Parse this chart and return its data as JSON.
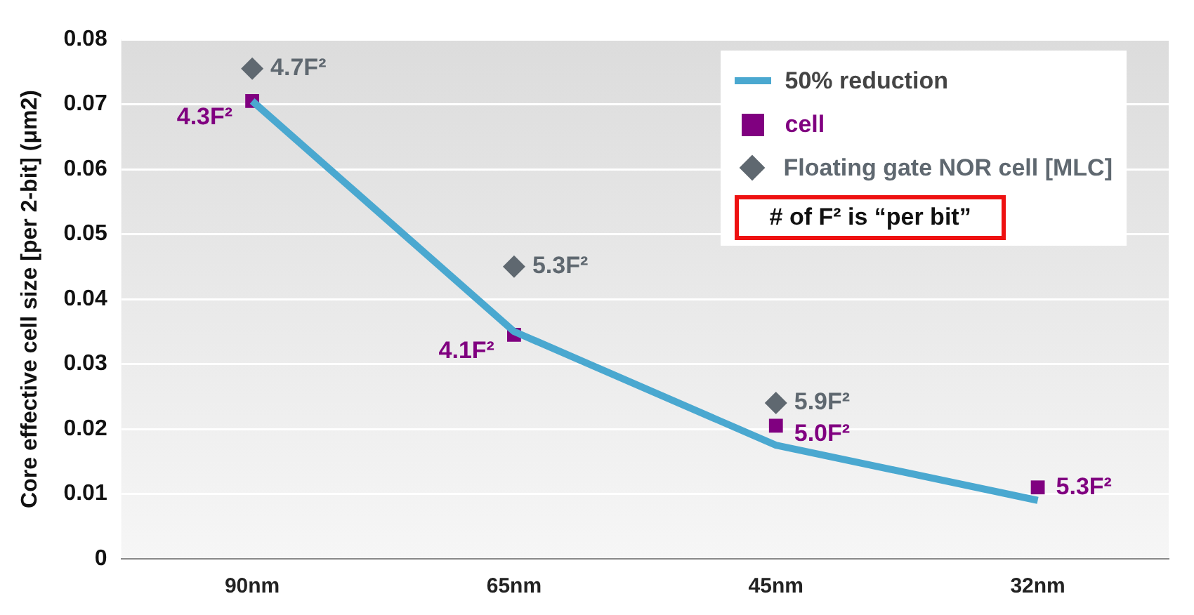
{
  "chart_data": {
    "type": "line",
    "ylabel": "Core effective cell size [per 2-bit] (μm2)",
    "categories": [
      "90nm",
      "65nm",
      "45nm",
      "32nm"
    ],
    "series": [
      {
        "name": "50% reduction",
        "color": "#4aa8d0",
        "values": [
          0.0705,
          0.035,
          0.0175,
          0.009
        ]
      },
      {
        "name": "cell",
        "type": "scatter",
        "marker": "square",
        "color": "#800080",
        "values": [
          0.0705,
          0.0345,
          0.0205,
          0.011
        ]
      },
      {
        "name": "Floating gate NOR cell [MLC]",
        "type": "scatter",
        "marker": "diamond",
        "color": "#5f6870",
        "values": [
          0.0755,
          0.045,
          0.024,
          null
        ]
      }
    ],
    "ylim": [
      0,
      0.08
    ],
    "yticks": [
      0,
      0.01,
      0.02,
      0.03,
      0.04,
      0.05,
      0.06,
      0.07,
      0.08
    ],
    "grid": "y",
    "legend": "top right",
    "annotations": [
      "# of F² is “per bit”",
      {
        "text": "4.3F²",
        "x": "90nm",
        "y": 0.0705
      },
      {
        "text": "4.1F²",
        "x": "65nm",
        "y": 0.0345
      },
      {
        "text": "5.0F²",
        "x": "45nm",
        "y": 0.0205
      },
      {
        "text": "5.3F²",
        "x": "32nm",
        "y": 0.011
      },
      {
        "text": "4.7F²",
        "x": "90nm",
        "y": 0.0755
      },
      {
        "text": "5.3F²",
        "x": "65nm",
        "y": 0.045
      },
      {
        "text": "5.9F²",
        "x": "45nm",
        "y": 0.024
      }
    ]
  }
}
